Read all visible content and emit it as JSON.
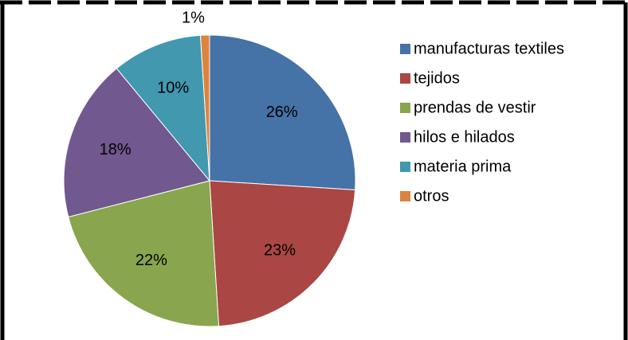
{
  "chart_data": {
    "type": "pie",
    "categories": [
      "manufacturas textiles",
      "tejidos",
      "prendas de vestir",
      "hilos e hilados",
      "materia prima",
      "otros"
    ],
    "values": [
      26,
      23,
      22,
      18,
      10,
      1
    ],
    "value_labels": [
      "26%",
      "23%",
      "22%",
      "18%",
      "10%",
      "1%"
    ],
    "colors": [
      "#4572a7",
      "#aa4643",
      "#89a54e",
      "#71588f",
      "#4198af",
      "#db843d"
    ],
    "legend": "right"
  }
}
